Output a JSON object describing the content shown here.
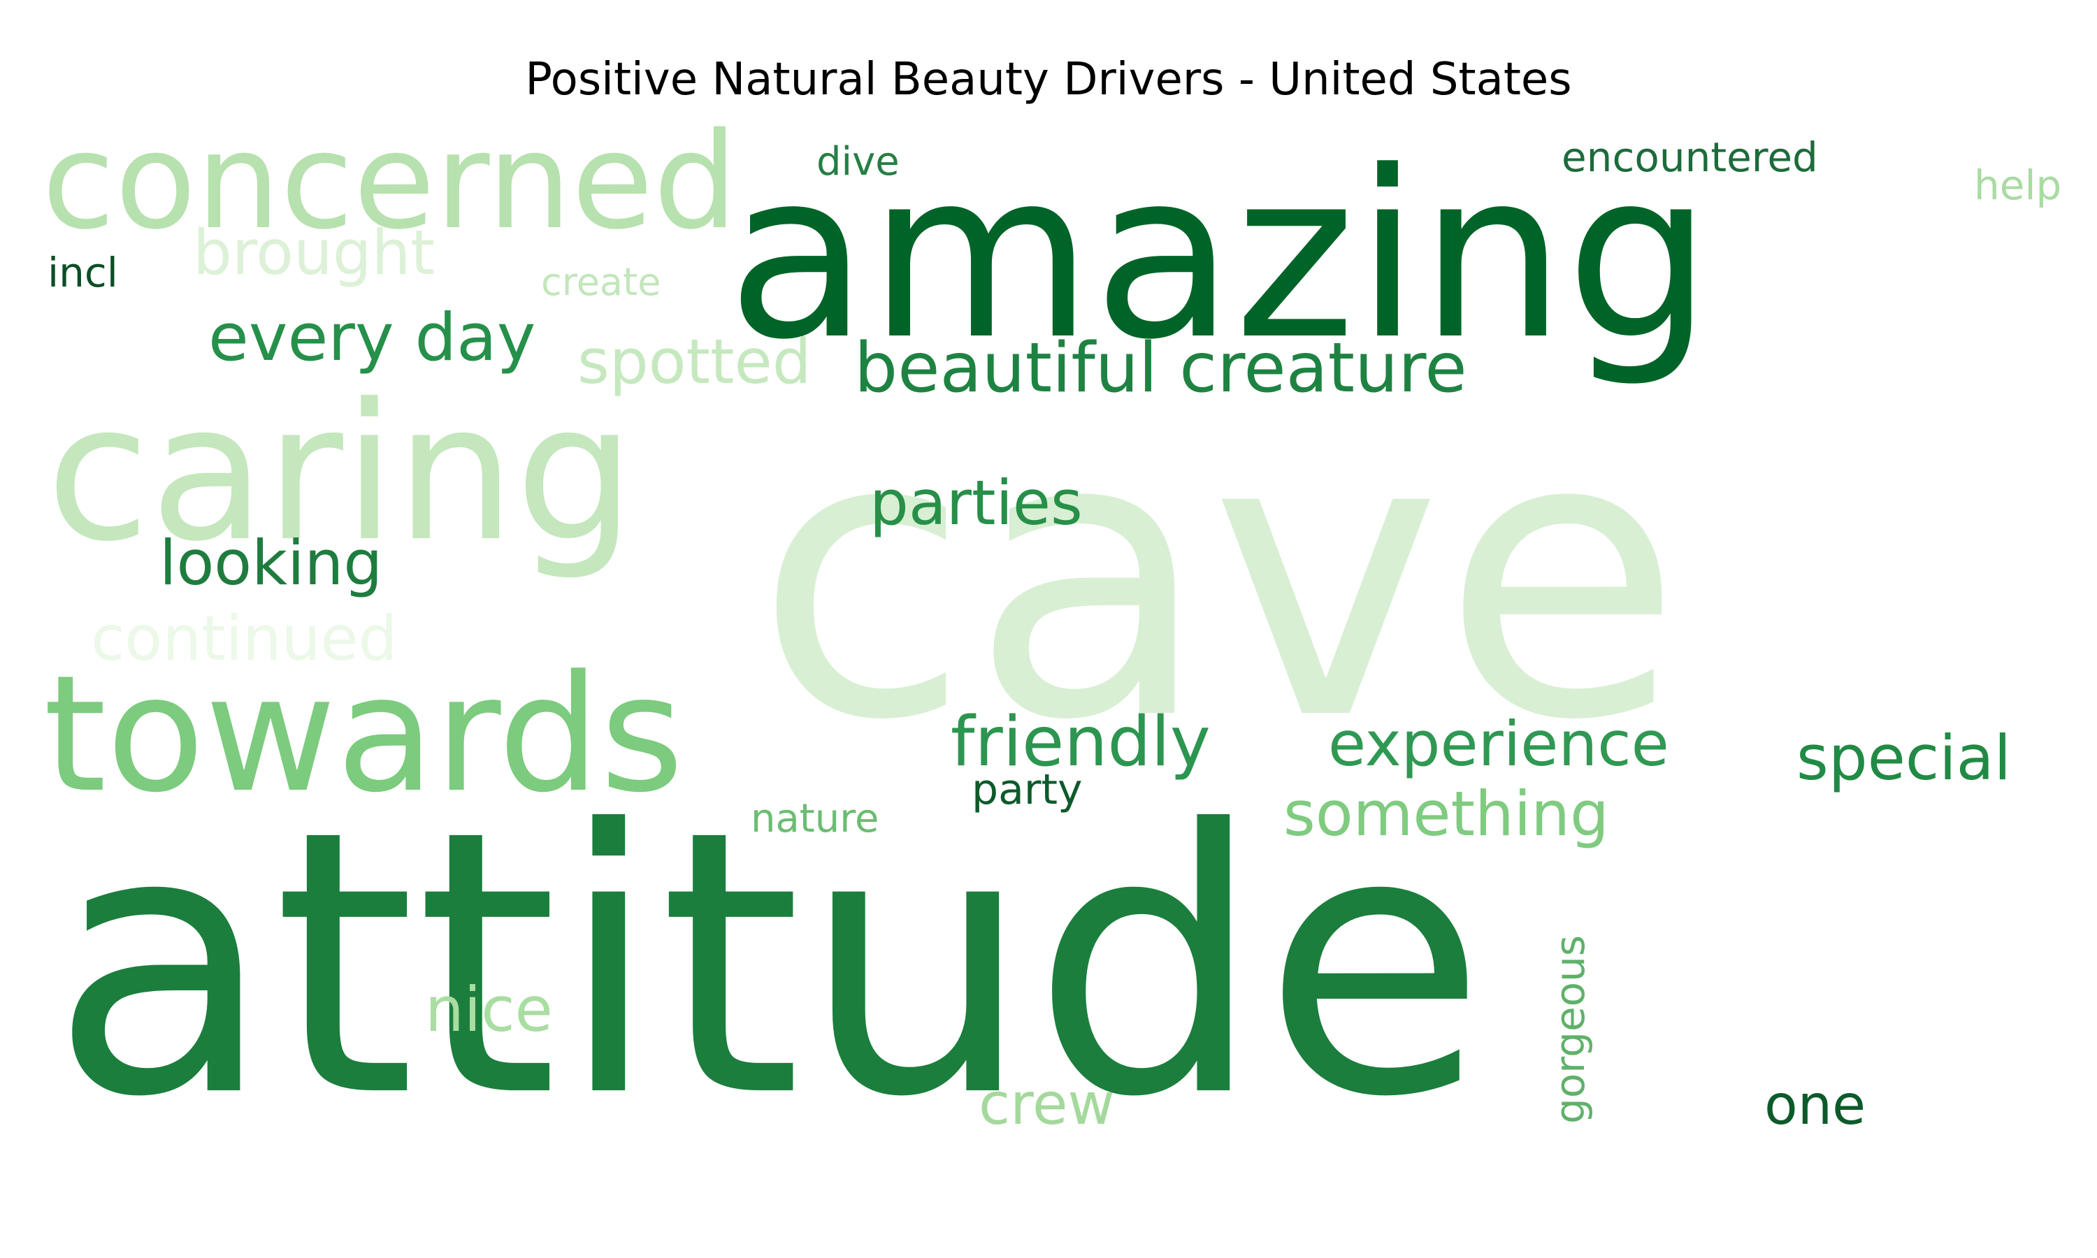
{
  "title": "Positive Natural Beauty Drivers - United States",
  "palette": {
    "darkest": "#00441b",
    "dark": "#006428",
    "mid_dark": "#1b7e3d",
    "mid": "#238b45",
    "mid_light": "#74c476",
    "light": "#a1d99b",
    "lighter": "#c7e9c0",
    "lightest": "#e5f5e0"
  },
  "words": [
    {
      "text": "cave",
      "weight": 100,
      "color": "#d8efd3"
    },
    {
      "text": "attitude",
      "weight": 98,
      "color": "#1b7e3d"
    },
    {
      "text": "amazing",
      "weight": 62,
      "color": "#006428"
    },
    {
      "text": "caring",
      "weight": 48,
      "color": "#c4e7bd"
    },
    {
      "text": "concerned",
      "weight": 40,
      "color": "#b7e1ae"
    },
    {
      "text": "towards",
      "weight": 52,
      "color": "#7ccb7e"
    },
    {
      "text": "beautiful creature",
      "weight": 21,
      "color": "#1e8342"
    },
    {
      "text": "every day",
      "weight": 21,
      "color": "#26904a"
    },
    {
      "text": "spotted",
      "weight": 19,
      "color": "#c6e8bf"
    },
    {
      "text": "brought",
      "weight": 19,
      "color": "#dcf1d7"
    },
    {
      "text": "parties",
      "weight": 19,
      "color": "#278f48"
    },
    {
      "text": "looking",
      "weight": 19,
      "color": "#1e7c3f"
    },
    {
      "text": "continued",
      "weight": 19,
      "color": "#ecf8e8"
    },
    {
      "text": "friendly",
      "weight": 21,
      "color": "#2c9550"
    },
    {
      "text": "experience",
      "weight": 19,
      "color": "#2f9852"
    },
    {
      "text": "special",
      "weight": 19,
      "color": "#218a45"
    },
    {
      "text": "something",
      "weight": 19,
      "color": "#7fcb80"
    },
    {
      "text": "nice",
      "weight": 19,
      "color": "#a9ddA1"
    },
    {
      "text": "crew",
      "weight": 19,
      "color": "#a4d99c"
    },
    {
      "text": "one",
      "weight": 17,
      "color": "#0d5a2a"
    },
    {
      "text": "gorgeous",
      "weight": 12,
      "color": "#5fb16a"
    },
    {
      "text": "party",
      "weight": 13,
      "color": "#0e5a2b"
    },
    {
      "text": "nature",
      "weight": 12,
      "color": "#6bbd72"
    },
    {
      "text": "dive",
      "weight": 12,
      "color": "#257e45"
    },
    {
      "text": "create",
      "weight": 11,
      "color": "#c3e6bb"
    },
    {
      "text": "incl",
      "weight": 12,
      "color": "#0b4f27"
    },
    {
      "text": "encountered",
      "weight": 12,
      "color": "#1d6b3b"
    },
    {
      "text": "help",
      "weight": 12,
      "color": "#a9dba2"
    }
  ]
}
